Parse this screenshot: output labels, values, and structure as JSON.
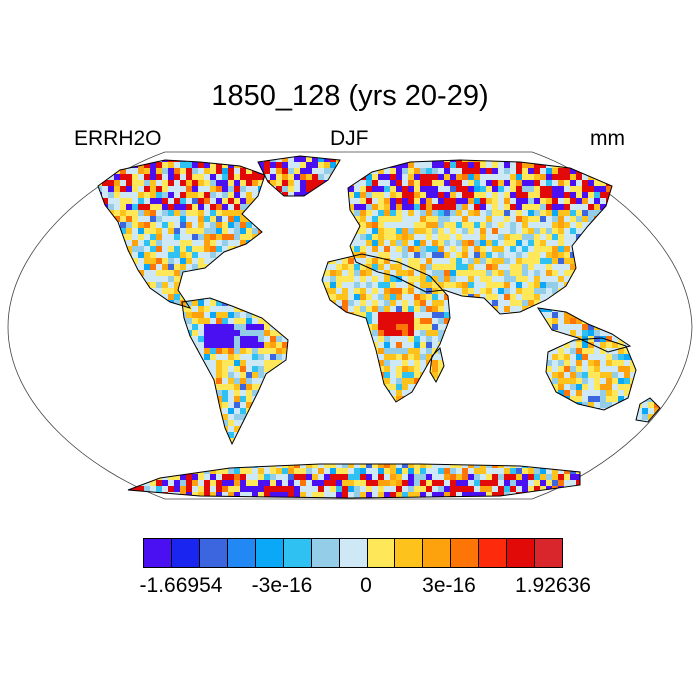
{
  "title": "1850_128 (yrs 20-29)",
  "subtitle_left": "ERRH2O",
  "subtitle_center": "DJF",
  "subtitle_right": "mm",
  "colorbar": {
    "colors": [
      "#4a10f2",
      "#1a26f0",
      "#3b66e0",
      "#2288f4",
      "#0aa8f6",
      "#2ec1f1",
      "#94cde8",
      "#cfe8f6",
      "#fee85a",
      "#fdc31c",
      "#fda10c",
      "#fd7407",
      "#fd2a0b",
      "#e10a08",
      "#d8262c"
    ],
    "labels": [
      "-1.66954",
      "-3e-16",
      "0",
      "3e-16",
      "1.92636"
    ]
  },
  "map": {
    "projection": "Robinson",
    "field": "ERRH2O",
    "season": "DJF",
    "units": "mm",
    "value_range": [
      -1.66954,
      1.92636
    ],
    "ocean_color": "#ffffff",
    "coastline_color": "#000000"
  }
}
